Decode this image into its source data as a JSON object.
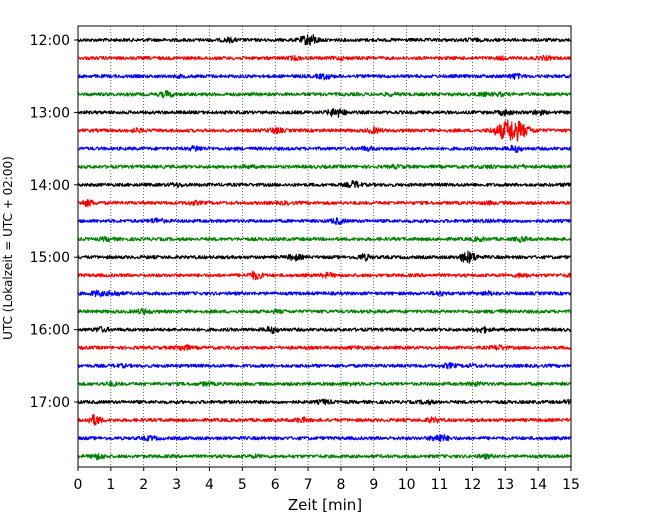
{
  "chart_data": {
    "type": "line",
    "title": "",
    "xlabel": "Zeit  [min]",
    "ylabel": "UTC (Lokalzeit = UTC + 02:00)",
    "xlim": [
      0,
      15
    ],
    "x_ticks": [
      0,
      1,
      2,
      3,
      4,
      5,
      6,
      7,
      8,
      9,
      10,
      11,
      12,
      13,
      14,
      15
    ],
    "y_tick_labels": [
      "12:00",
      "13:00",
      "14:00",
      "15:00",
      "16:00",
      "17:00"
    ],
    "y_tick_rows": [
      0,
      4,
      8,
      12,
      16,
      20
    ],
    "grid": "vertical dotted at each minute",
    "trace_minutes": 15,
    "row_colors": [
      "#000000",
      "#ff0000",
      "#0000ff",
      "#008000"
    ],
    "traces": [
      {
        "row": 0,
        "start": "12:00",
        "events": [
          {
            "t": 4.6,
            "amp": 0.35
          },
          {
            "t": 6.9,
            "amp": 0.45
          },
          {
            "t": 7.1,
            "amp": 1.0
          },
          {
            "t": 12.0,
            "amp": 0.2
          }
        ]
      },
      {
        "row": 1,
        "start": "12:15",
        "events": [
          {
            "t": 6.6,
            "amp": 0.3
          },
          {
            "t": 8.0,
            "amp": 0.2
          },
          {
            "t": 12.9,
            "amp": 0.2
          },
          {
            "t": 14.2,
            "amp": 0.3
          }
        ]
      },
      {
        "row": 2,
        "start": "12:30",
        "events": [
          {
            "t": 7.5,
            "amp": 0.5
          },
          {
            "t": 13.3,
            "amp": 0.45
          },
          {
            "t": 3.1,
            "amp": 0.15
          }
        ]
      },
      {
        "row": 3,
        "start": "12:45",
        "events": [
          {
            "t": 2.7,
            "amp": 0.6
          },
          {
            "t": 9.5,
            "amp": 0.2
          },
          {
            "t": 12.3,
            "amp": 0.25
          },
          {
            "t": 12.8,
            "amp": 0.25
          }
        ]
      },
      {
        "row": 4,
        "start": "13:00",
        "events": [
          {
            "t": 7.8,
            "amp": 0.7
          },
          {
            "t": 8.0,
            "amp": 0.4
          },
          {
            "t": 13.0,
            "amp": 0.5
          },
          {
            "t": 14.0,
            "amp": 0.4
          }
        ]
      },
      {
        "row": 5,
        "start": "13:15",
        "events": [
          {
            "t": 1.8,
            "amp": 0.3
          },
          {
            "t": 6.0,
            "amp": 0.5
          },
          {
            "t": 9.0,
            "amp": 0.5
          },
          {
            "t": 13.2,
            "amp": 2.6
          }
        ]
      },
      {
        "row": 6,
        "start": "13:30",
        "events": [
          {
            "t": 3.6,
            "amp": 0.5
          },
          {
            "t": 8.8,
            "amp": 0.35
          },
          {
            "t": 13.3,
            "amp": 0.6
          }
        ]
      },
      {
        "row": 7,
        "start": "13:45",
        "events": [
          {
            "t": 5.2,
            "amp": 0.2
          },
          {
            "t": 9.7,
            "amp": 0.25
          },
          {
            "t": 12.5,
            "amp": 0.2
          },
          {
            "t": 13.5,
            "amp": 0.2
          }
        ]
      },
      {
        "row": 8,
        "start": "14:00",
        "events": [
          {
            "t": 3.0,
            "amp": 0.3
          },
          {
            "t": 8.4,
            "amp": 0.7
          },
          {
            "t": 15.0,
            "amp": 0.3
          }
        ]
      },
      {
        "row": 9,
        "start": "14:15",
        "events": [
          {
            "t": 0.3,
            "amp": 0.6
          },
          {
            "t": 3.5,
            "amp": 0.3
          },
          {
            "t": 6.3,
            "amp": 0.2
          },
          {
            "t": 12.5,
            "amp": 0.2
          }
        ]
      },
      {
        "row": 10,
        "start": "14:30",
        "events": [
          {
            "t": 2.4,
            "amp": 0.5
          },
          {
            "t": 7.9,
            "amp": 0.55
          },
          {
            "t": 12.5,
            "amp": 0.25
          }
        ]
      },
      {
        "row": 11,
        "start": "14:45",
        "events": [
          {
            "t": 0.9,
            "amp": 0.3
          },
          {
            "t": 12.2,
            "amp": 0.3
          },
          {
            "t": 13.5,
            "amp": 0.4
          }
        ]
      },
      {
        "row": 12,
        "start": "15:00",
        "events": [
          {
            "t": 6.6,
            "amp": 0.6
          },
          {
            "t": 8.7,
            "amp": 0.6
          },
          {
            "t": 11.8,
            "amp": 0.9
          },
          {
            "t": 12.0,
            "amp": 0.6
          }
        ]
      },
      {
        "row": 13,
        "start": "15:15",
        "events": [
          {
            "t": 5.4,
            "amp": 0.8
          },
          {
            "t": 7.6,
            "amp": 0.4
          },
          {
            "t": 13.5,
            "amp": 0.35
          },
          {
            "t": 15.0,
            "amp": 0.2
          }
        ]
      },
      {
        "row": 14,
        "start": "15:30",
        "events": [
          {
            "t": 0.6,
            "amp": 0.5
          },
          {
            "t": 1.1,
            "amp": 0.5
          },
          {
            "t": 11.0,
            "amp": 0.35
          },
          {
            "t": 12.5,
            "amp": 0.3
          }
        ]
      },
      {
        "row": 15,
        "start": "15:45",
        "events": [
          {
            "t": 2.0,
            "amp": 0.45
          },
          {
            "t": 6.1,
            "amp": 0.2
          },
          {
            "t": 12.8,
            "amp": 0.2
          }
        ]
      },
      {
        "row": 16,
        "start": "16:00",
        "events": [
          {
            "t": 0.7,
            "amp": 0.45
          },
          {
            "t": 5.9,
            "amp": 0.6
          },
          {
            "t": 12.3,
            "amp": 0.55
          }
        ]
      },
      {
        "row": 17,
        "start": "16:15",
        "events": [
          {
            "t": 3.2,
            "amp": 0.55
          },
          {
            "t": 8.5,
            "amp": 0.2
          },
          {
            "t": 12.8,
            "amp": 0.45
          }
        ]
      },
      {
        "row": 18,
        "start": "16:30",
        "events": [
          {
            "t": 1.3,
            "amp": 0.2
          },
          {
            "t": 11.3,
            "amp": 0.4
          },
          {
            "t": 12.0,
            "amp": 0.2
          }
        ]
      },
      {
        "row": 19,
        "start": "16:45",
        "events": [
          {
            "t": 1.0,
            "amp": 0.3
          },
          {
            "t": 3.9,
            "amp": 0.25
          },
          {
            "t": 8.3,
            "amp": 0.2
          },
          {
            "t": 12.1,
            "amp": 0.3
          }
        ]
      },
      {
        "row": 20,
        "start": "17:00",
        "events": [
          {
            "t": 7.5,
            "amp": 0.4
          },
          {
            "t": 10.6,
            "amp": 0.3
          },
          {
            "t": 15.0,
            "amp": 0.3
          }
        ]
      },
      {
        "row": 21,
        "start": "17:15",
        "events": [
          {
            "t": 0.5,
            "amp": 1.1
          },
          {
            "t": 6.8,
            "amp": 0.45
          },
          {
            "t": 10.8,
            "amp": 0.45
          }
        ]
      },
      {
        "row": 22,
        "start": "17:30",
        "events": [
          {
            "t": 2.2,
            "amp": 0.35
          },
          {
            "t": 10.9,
            "amp": 0.5
          },
          {
            "t": 11.1,
            "amp": 0.5
          }
        ]
      },
      {
        "row": 23,
        "start": "17:45",
        "events": [
          {
            "t": 0.6,
            "amp": 0.55
          },
          {
            "t": 5.4,
            "amp": 0.2
          },
          {
            "t": 12.4,
            "amp": 0.3
          }
        ]
      }
    ]
  }
}
